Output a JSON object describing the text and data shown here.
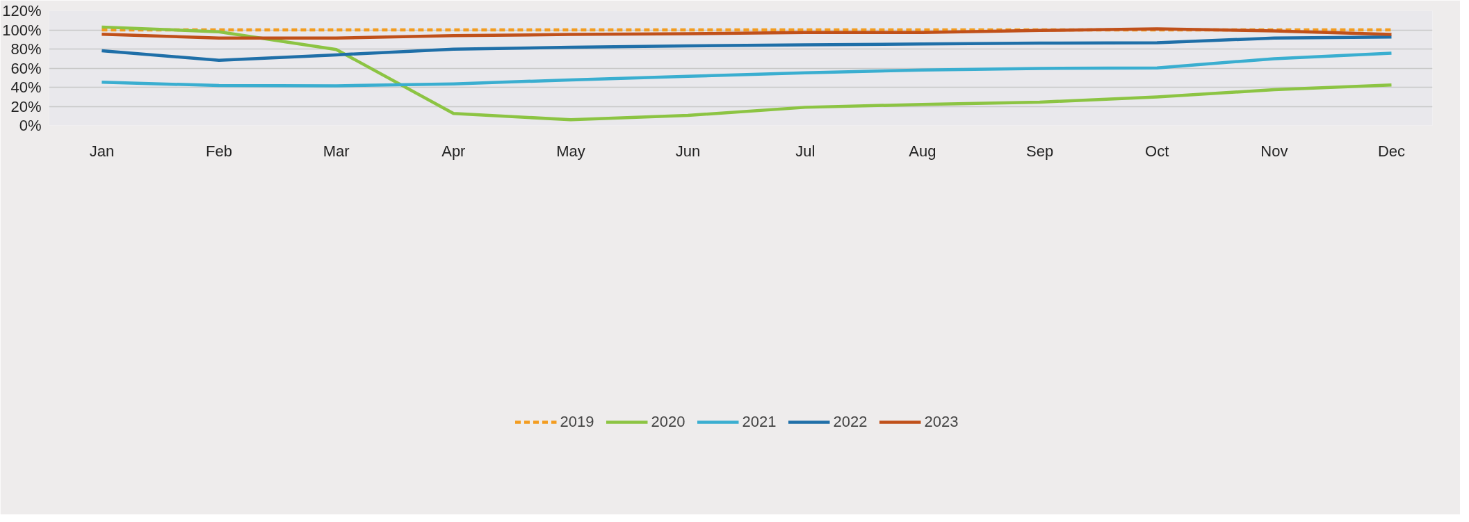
{
  "chart_data": {
    "type": "line",
    "categories": [
      "Jan",
      "Feb",
      "Mar",
      "Apr",
      "May",
      "Jun",
      "Jul",
      "Aug",
      "Sep",
      "Oct",
      "Nov",
      "Dec"
    ],
    "series": [
      {
        "name": "2019",
        "color": "#f39c1f",
        "line_style": "dashed",
        "values": [
          100,
          100,
          100,
          100,
          100,
          100,
          100,
          100,
          100,
          100,
          100,
          100
        ]
      },
      {
        "name": "2020",
        "color": "#8cc443",
        "values": [
          103,
          98,
          79.5,
          12.5,
          6,
          10.5,
          19,
          22,
          24.4,
          29.8,
          37.5,
          42.3
        ]
      },
      {
        "name": "2021",
        "color": "#3aaed0",
        "values": [
          45.2,
          41.8,
          41.5,
          43.5,
          47.7,
          51.4,
          55.1,
          58,
          59.7,
          60.2,
          69.9,
          75.6
        ]
      },
      {
        "name": "2022",
        "color": "#1f6fa8",
        "values": [
          78.1,
          68.2,
          73.9,
          79.8,
          81.8,
          83.2,
          84.4,
          85.2,
          86.1,
          86.6,
          91.5,
          92.6
        ]
      },
      {
        "name": "2023",
        "color": "#c0501a",
        "values": [
          95.5,
          91.5,
          91.5,
          94,
          95.2,
          96,
          97.2,
          97.2,
          99.4,
          101.1,
          98.9,
          95.2
        ]
      }
    ],
    "ylim": [
      0,
      120
    ],
    "yticks": [
      {
        "value": 0,
        "label": "0%"
      },
      {
        "value": 20,
        "label": "20%"
      },
      {
        "value": 40,
        "label": "40%"
      },
      {
        "value": 60,
        "label": "60%"
      },
      {
        "value": 80,
        "label": "80%"
      },
      {
        "value": 100,
        "label": "100%"
      },
      {
        "value": 120,
        "label": "120%"
      }
    ],
    "grid": "y",
    "legend": "bottom",
    "line_style": "solid",
    "marker": "none"
  }
}
